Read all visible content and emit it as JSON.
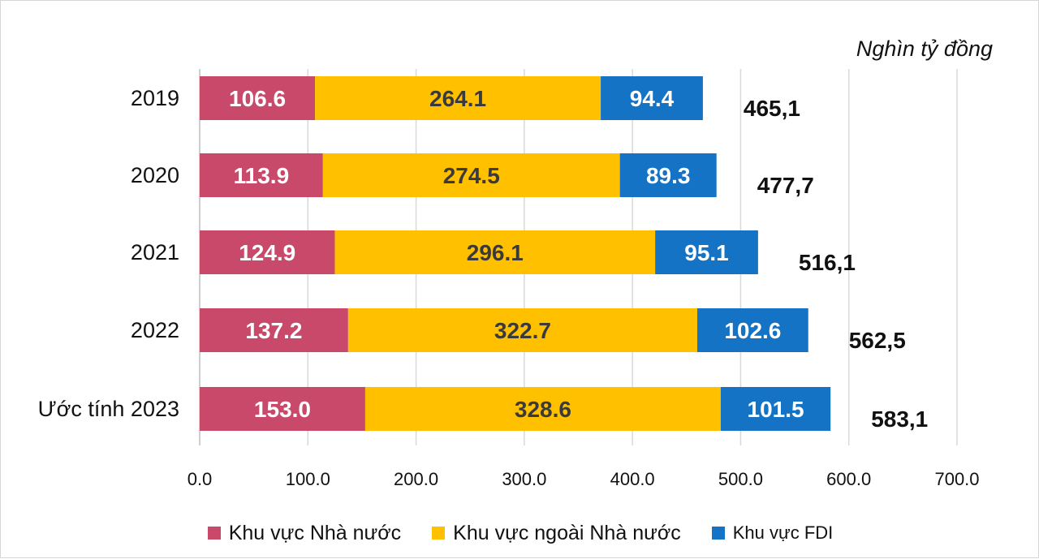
{
  "chart_data": {
    "type": "bar",
    "orientation": "horizontal",
    "stacked": true,
    "unit_label": "Nghìn tỷ đồng",
    "categories": [
      "2019",
      "2020",
      "2021",
      "2022",
      "Ước tính 2023"
    ],
    "series": [
      {
        "name": "Khu vực Nhà nước",
        "color": "#c9496a",
        "values": [
          106.6,
          113.9,
          124.9,
          137.2,
          153.0
        ],
        "labels": [
          "106.6",
          "113.9",
          "124.9",
          "137.2",
          "153.0"
        ]
      },
      {
        "name": "Khu vực ngoài Nhà nước",
        "color": "#ffc000",
        "values": [
          264.1,
          274.5,
          296.1,
          322.7,
          328.6
        ],
        "labels": [
          "264.1",
          "274.5",
          "296.1",
          "322.7",
          "328.6"
        ]
      },
      {
        "name": "Khu vực FDI",
        "color": "#1473c5",
        "values": [
          94.4,
          89.3,
          95.1,
          102.6,
          101.5
        ],
        "labels": [
          "94.4",
          "89.3",
          "95.1",
          "102.6",
          "101.5"
        ]
      }
    ],
    "totals": [
      465.1,
      477.7,
      516.1,
      562.5,
      583.1
    ],
    "total_labels": [
      "465,1",
      "477,7",
      "516,1",
      "562,5",
      "583,1"
    ],
    "xlim": [
      0,
      700
    ],
    "x_ticks": [
      0,
      100,
      200,
      300,
      400,
      500,
      600,
      700
    ],
    "x_tick_labels": [
      "0.0",
      "100.0",
      "200.0",
      "300.0",
      "400.0",
      "500.0",
      "600.0",
      "700.0"
    ],
    "grid": "vertical",
    "legend_position": "bottom"
  }
}
